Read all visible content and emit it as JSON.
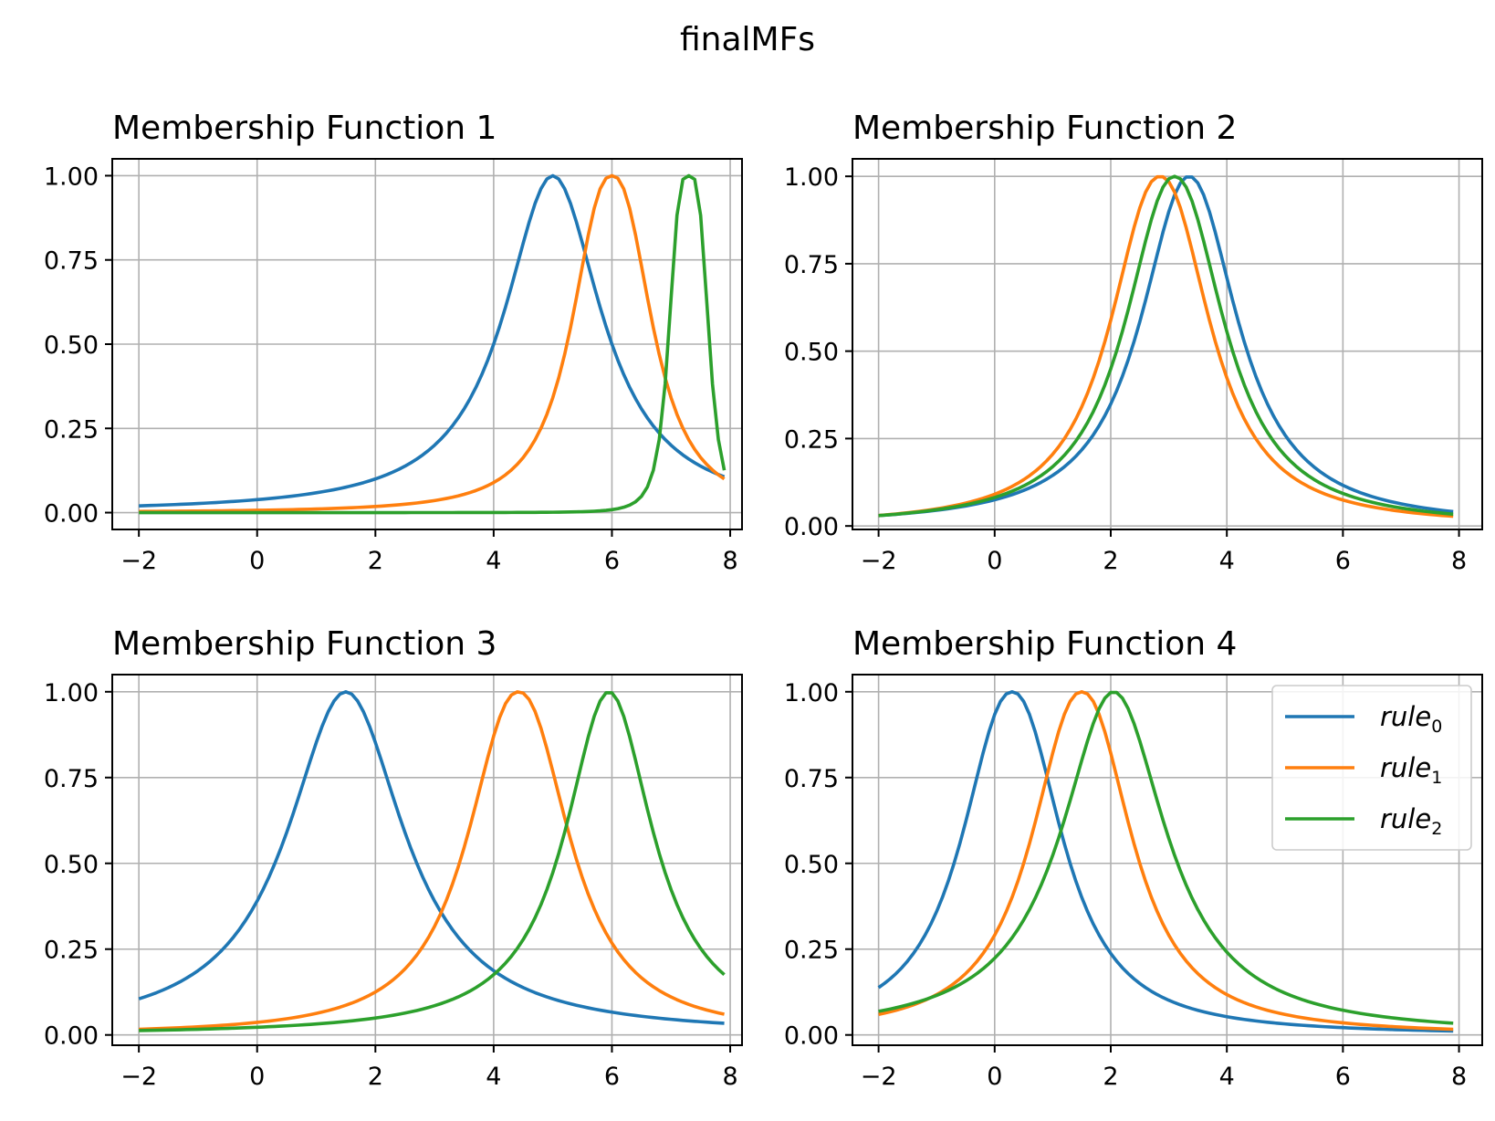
{
  "figure": {
    "suptitle": "finalMFs"
  },
  "chart_data": [
    {
      "type": "line",
      "title": "Membership Function 1",
      "xlabel": "",
      "ylabel": "",
      "xlim": [
        -2.45,
        8.2
      ],
      "ylim": [
        -0.05,
        1.05
      ],
      "xticks": [
        -2,
        0,
        2,
        4,
        6,
        8
      ],
      "xtick_labels": [
        "−2",
        "0",
        "2",
        "4",
        "6",
        "8"
      ],
      "yticks": [
        0.0,
        0.25,
        0.5,
        0.75,
        1.0
      ],
      "ytick_labels": [
        "0.00",
        "0.25",
        "0.50",
        "0.75",
        "1.00"
      ],
      "grid": true,
      "x_range": [
        -2,
        7.9
      ],
      "series": [
        {
          "color": "#1f77b4",
          "model": "gbell",
          "a": 1.0,
          "b": 1.0,
          "c": 5.0
        },
        {
          "color": "#ff7f0e",
          "model": "gbell",
          "a": 0.76,
          "b": 1.2,
          "c": 6.0
        },
        {
          "color": "#2ca02c",
          "model": "gbell",
          "a": 0.35,
          "b": 1.8,
          "c": 7.3
        }
      ]
    },
    {
      "type": "line",
      "title": "Membership Function 2",
      "xlabel": "",
      "ylabel": "",
      "xlim": [
        -2.45,
        8.4
      ],
      "ylim": [
        -0.01,
        1.05
      ],
      "xticks": [
        -2,
        0,
        2,
        4,
        6,
        8
      ],
      "xtick_labels": [
        "−2",
        "0",
        "2",
        "4",
        "6",
        "8"
      ],
      "yticks": [
        0.0,
        0.25,
        0.5,
        0.75,
        1.0
      ],
      "ytick_labels": [
        "0.00",
        "0.25",
        "0.50",
        "0.75",
        "1.00"
      ],
      "grid": true,
      "x_range": [
        -2,
        7.9
      ],
      "series": [
        {
          "color": "#1f77b4",
          "model": "gbell",
          "a": 1.0,
          "b": 1.04,
          "c": 3.35
        },
        {
          "color": "#ff7f0e",
          "model": "gbell",
          "a": 1.0,
          "b": 1.1,
          "c": 2.85
        },
        {
          "color": "#2ca02c",
          "model": "gbell",
          "a": 1.0,
          "b": 1.07,
          "c": 3.1
        }
      ]
    },
    {
      "type": "line",
      "title": "Membership Function 3",
      "xlabel": "",
      "ylabel": "",
      "xlim": [
        -2.45,
        8.2
      ],
      "ylim": [
        -0.03,
        1.05
      ],
      "xticks": [
        -2,
        0,
        2,
        4,
        6,
        8
      ],
      "xtick_labels": [
        "−2",
        "0",
        "2",
        "4",
        "6",
        "8"
      ],
      "yticks": [
        0.0,
        0.25,
        0.5,
        0.75,
        1.0
      ],
      "ytick_labels": [
        "0.00",
        "0.25",
        "0.50",
        "0.75",
        "1.00"
      ],
      "grid": true,
      "x_range": [
        -2,
        7.9
      ],
      "series": [
        {
          "color": "#1f77b4",
          "model": "gbell",
          "a": 1.2,
          "b": 1.0,
          "c": 1.5
        },
        {
          "color": "#ff7f0e",
          "model": "gbell",
          "a": 1.0,
          "b": 1.1,
          "c": 4.42
        },
        {
          "color": "#2ca02c",
          "model": "gbell",
          "a": 0.9,
          "b": 1.0,
          "c": 5.95
        }
      ]
    },
    {
      "type": "line",
      "title": "Membership Function 4",
      "xlabel": "",
      "ylabel": "",
      "xlim": [
        -2.45,
        8.4
      ],
      "ylim": [
        -0.03,
        1.05
      ],
      "xticks": [
        -2,
        0,
        2,
        4,
        6,
        8
      ],
      "xtick_labels": [
        "−2",
        "0",
        "2",
        "4",
        "6",
        "8"
      ],
      "yticks": [
        0.0,
        0.25,
        0.5,
        0.75,
        1.0
      ],
      "ytick_labels": [
        "0.00",
        "0.25",
        "0.50",
        "0.75",
        "1.00"
      ],
      "grid": true,
      "x_range": [
        -2,
        7.9
      ],
      "legend": {
        "placement": "upper-right",
        "entries": [
          {
            "base": "rule",
            "sub": "0",
            "color": "#1f77b4"
          },
          {
            "base": "rule",
            "sub": "1",
            "color": "#ff7f0e"
          },
          {
            "base": "rule",
            "sub": "2",
            "color": "#2ca02c"
          }
        ]
      },
      "series": [
        {
          "color": "#1f77b4",
          "model": "gbell",
          "a": 1.0,
          "b": 1.1,
          "c": 0.3
        },
        {
          "color": "#ff7f0e",
          "model": "gbell",
          "a": 1.0,
          "b": 1.1,
          "c": 1.5
        },
        {
          "color": "#2ca02c",
          "model": "gbell",
          "a": 1.1,
          "b": 1.0,
          "c": 2.05
        }
      ]
    }
  ]
}
